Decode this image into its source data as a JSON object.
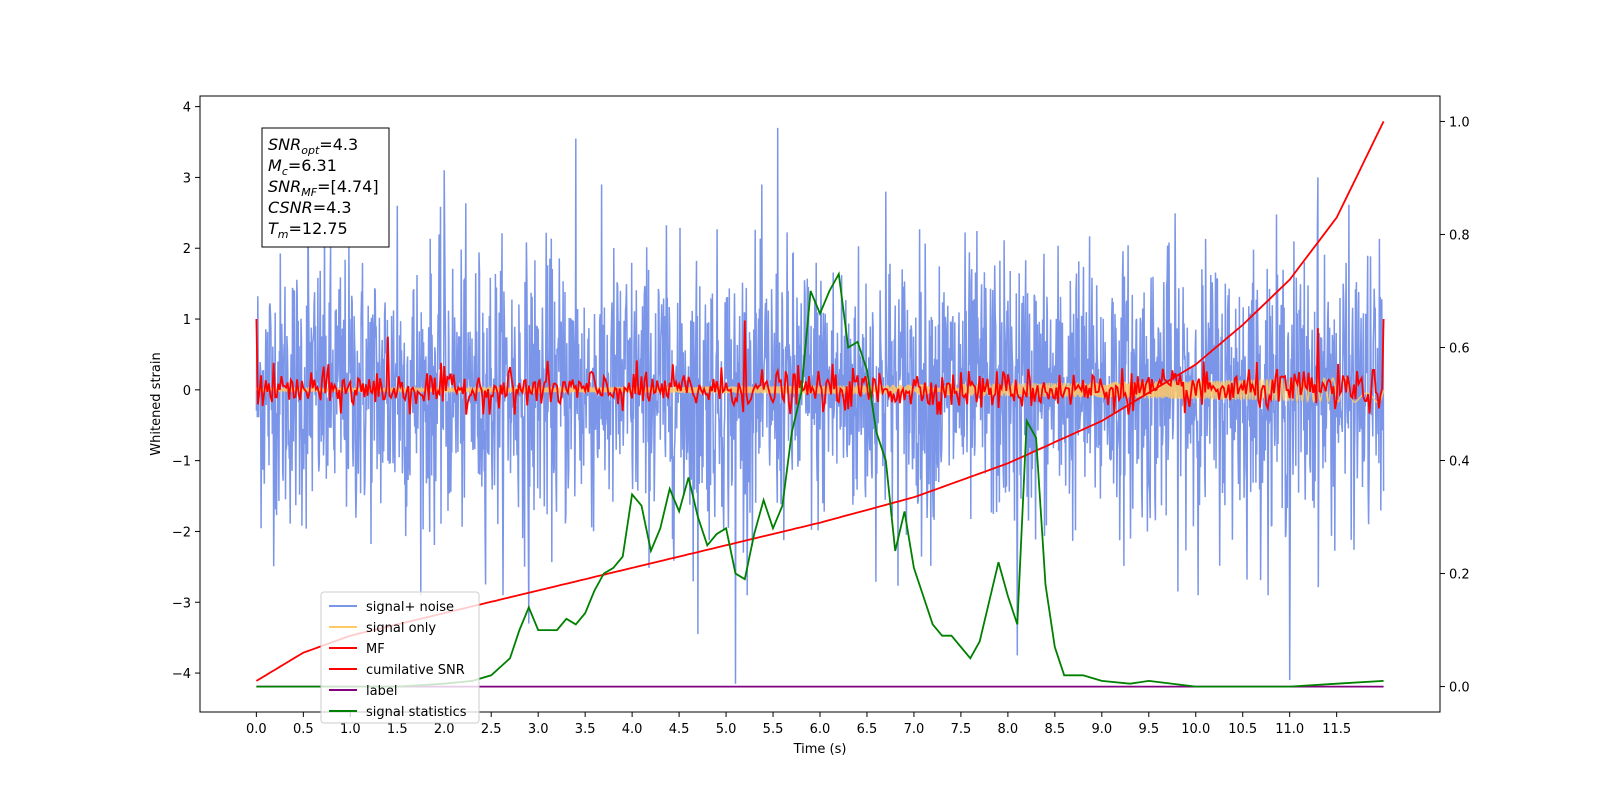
{
  "chart_data": {
    "type": "line",
    "title": "",
    "xlabel": "Time (s)",
    "ylabel": "Whitened strain",
    "xlim": [
      -0.6,
      12.6
    ],
    "ylim": [
      -4.55,
      4.15
    ],
    "y2lim": [
      -0.045,
      1.045
    ],
    "x_ticks": [
      "0.0",
      "0.5",
      "1.0",
      "1.5",
      "2.0",
      "2.5",
      "3.0",
      "3.5",
      "4.0",
      "4.5",
      "5.0",
      "5.5",
      "6.0",
      "6.5",
      "7.0",
      "7.5",
      "8.0",
      "8.5",
      "9.0",
      "9.5",
      "10.0",
      "10.5",
      "11.0",
      "11.5"
    ],
    "y_ticks": [
      "4",
      "3",
      "2",
      "1",
      "0",
      "−1",
      "−2",
      "−3",
      "−4"
    ],
    "y2_ticks": [
      "1.0",
      "0.8",
      "0.6",
      "0.4",
      "0.2",
      "0.0"
    ],
    "grid": false,
    "legend_position": "lower-left",
    "colors": {
      "signal_noise": "#7b96e8",
      "signal_only": "#ffc966",
      "mf": "#ff0000",
      "cumulative_snr": "#ff0000",
      "label": "#800080",
      "signal_statistics": "#008000"
    },
    "series": [
      {
        "name": "signal+ noise",
        "axis": "left",
        "style": "noise",
        "x_range": [
          0,
          12
        ],
        "band": [
          -1.3,
          1.3
        ],
        "notable_spikes": [
          [
            0.55,
            2.9
          ],
          [
            1.5,
            2.6
          ],
          [
            2.0,
            3.1
          ],
          [
            3.4,
            3.55
          ],
          [
            5.55,
            3.7
          ],
          [
            6.7,
            2.8
          ],
          [
            11.3,
            3.0
          ],
          [
            5.1,
            -4.15
          ],
          [
            11.0,
            -4.1
          ],
          [
            8.1,
            -3.75
          ],
          [
            4.7,
            -3.45
          ],
          [
            2.9,
            -3.3
          ]
        ]
      },
      {
        "name": "signal only",
        "axis": "left",
        "style": "chirp",
        "x_range": [
          0,
          12
        ],
        "amplitude": [
          0.02,
          0.18
        ]
      },
      {
        "name": "MF",
        "axis": "left",
        "style": "noisy",
        "x_range": [
          0,
          12
        ],
        "band": [
          -0.25,
          0.25
        ],
        "notable_spikes": [
          [
            0.0,
            1.0
          ],
          [
            1.4,
            0.75
          ],
          [
            5.2,
            0.98
          ],
          [
            11.3,
            0.87
          ],
          [
            12.0,
            1.0
          ]
        ]
      },
      {
        "name": "cumilative SNR",
        "axis": "right",
        "x": [
          0,
          0.5,
          1,
          2,
          3,
          4,
          5,
          6,
          7,
          8,
          9,
          10,
          10.5,
          11,
          11.5,
          12
        ],
        "values": [
          0.01,
          0.06,
          0.09,
          0.13,
          0.17,
          0.21,
          0.25,
          0.29,
          0.335,
          0.395,
          0.47,
          0.57,
          0.64,
          0.72,
          0.83,
          1.0
        ]
      },
      {
        "name": "label",
        "axis": "right",
        "x": [
          0,
          12
        ],
        "values": [
          0.0,
          0.0
        ]
      },
      {
        "name": "signal statistics",
        "axis": "right",
        "x": [
          0,
          0.5,
          1,
          1.5,
          2,
          2.3,
          2.5,
          2.7,
          2.8,
          2.9,
          3.0,
          3.2,
          3.3,
          3.4,
          3.5,
          3.6,
          3.7,
          3.8,
          3.9,
          4.0,
          4.1,
          4.2,
          4.3,
          4.4,
          4.5,
          4.6,
          4.7,
          4.8,
          4.9,
          5.0,
          5.1,
          5.2,
          5.3,
          5.4,
          5.5,
          5.6,
          5.7,
          5.8,
          5.9,
          6.0,
          6.1,
          6.2,
          6.3,
          6.4,
          6.5,
          6.6,
          6.7,
          6.8,
          6.9,
          7.0,
          7.1,
          7.2,
          7.3,
          7.4,
          7.5,
          7.6,
          7.7,
          7.8,
          7.9,
          8.0,
          8.1,
          8.2,
          8.3,
          8.4,
          8.5,
          8.6,
          8.8,
          9.0,
          9.3,
          9.5,
          10.0,
          11.0,
          11.5,
          12.0
        ],
        "values": [
          0.0,
          0.0,
          0.0,
          0.0,
          0.005,
          0.01,
          0.02,
          0.05,
          0.1,
          0.14,
          0.1,
          0.1,
          0.12,
          0.11,
          0.13,
          0.17,
          0.2,
          0.21,
          0.23,
          0.34,
          0.32,
          0.24,
          0.28,
          0.35,
          0.31,
          0.37,
          0.3,
          0.25,
          0.27,
          0.28,
          0.2,
          0.19,
          0.27,
          0.33,
          0.28,
          0.32,
          0.45,
          0.52,
          0.7,
          0.66,
          0.7,
          0.73,
          0.6,
          0.61,
          0.56,
          0.45,
          0.4,
          0.24,
          0.31,
          0.21,
          0.16,
          0.11,
          0.09,
          0.09,
          0.07,
          0.05,
          0.08,
          0.15,
          0.22,
          0.16,
          0.11,
          0.47,
          0.44,
          0.18,
          0.07,
          0.02,
          0.02,
          0.01,
          0.005,
          0.01,
          0.0,
          0.0,
          0.005,
          0.01
        ]
      }
    ],
    "info_box": [
      {
        "base": "SNR",
        "sub": "opt",
        "value": "=4.3"
      },
      {
        "base": "M",
        "sub": "c",
        "value": "=6.31"
      },
      {
        "base": "SNR",
        "sub": "MF",
        "value": "=[4.74]"
      },
      {
        "base": "CSNR",
        "sub": "",
        "value": "=4.3"
      },
      {
        "base": "T",
        "sub": "m",
        "value": "=12.75"
      }
    ]
  }
}
